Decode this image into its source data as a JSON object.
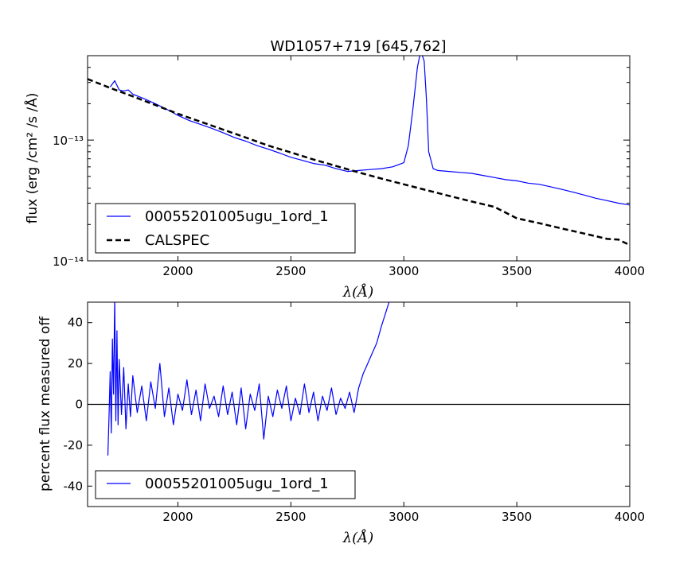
{
  "chart_data": [
    {
      "type": "line",
      "title": "WD1057+719 [645,762]",
      "xlabel": "λ(Å)",
      "ylabel": "flux (erg /cm² /s /Å)",
      "xlim": [
        1600,
        4000
      ],
      "ylim": [
        1e-14,
        5e-13
      ],
      "yscale": "log",
      "xticks": [
        2000,
        2500,
        3000,
        3500,
        4000
      ],
      "yticks": [
        {
          "value": 1e-13,
          "label": "10⁻¹³"
        },
        {
          "value": 1e-14,
          "label": "10⁻¹⁴"
        }
      ],
      "legend_position": "lower-left",
      "series": [
        {
          "name": "00055201005ugu_1ord_1",
          "color": "#0000ff",
          "style": "solid",
          "x": [
            1700,
            1720,
            1740,
            1760,
            1780,
            1800,
            1850,
            1900,
            1950,
            2000,
            2050,
            2100,
            2150,
            2200,
            2250,
            2300,
            2350,
            2400,
            2450,
            2500,
            2550,
            2600,
            2650,
            2700,
            2750,
            2800,
            2850,
            2900,
            2950,
            3000,
            3020,
            3040,
            3060,
            3075,
            3090,
            3100,
            3110,
            3130,
            3150,
            3200,
            3250,
            3300,
            3350,
            3400,
            3450,
            3500,
            3550,
            3600,
            3650,
            3700,
            3750,
            3800,
            3850,
            3900,
            3950,
            4000
          ],
          "y": [
            2.75e-13,
            3.1e-13,
            2.6e-13,
            2.55e-13,
            2.6e-13,
            2.4e-13,
            2.2e-13,
            2e-13,
            1.8e-13,
            1.6e-13,
            1.45e-13,
            1.35e-13,
            1.25e-13,
            1.15e-13,
            1.05e-13,
            9.8e-14,
            9e-14,
            8.4e-14,
            7.8e-14,
            7.2e-14,
            6.8e-14,
            6.4e-14,
            6.2e-14,
            5.8e-14,
            5.5e-14,
            5.6e-14,
            5.7e-14,
            5.8e-14,
            6e-14,
            6.5e-14,
            9e-14,
            1.8e-13,
            4e-13,
            5.5e-13,
            4.5e-13,
            2.2e-13,
            8e-14,
            5.8e-14,
            5.6e-14,
            5.5e-14,
            5.4e-14,
            5.3e-14,
            5.1e-14,
            4.9e-14,
            4.7e-14,
            4.6e-14,
            4.4e-14,
            4.3e-14,
            4.1e-14,
            3.9e-14,
            3.7e-14,
            3.5e-14,
            3.3e-14,
            3.15e-14,
            3e-14,
            2.9e-14
          ]
        },
        {
          "name": "CALSPEC",
          "color": "#000000",
          "style": "dashed",
          "x": [
            1600,
            1700,
            1800,
            1900,
            2000,
            2100,
            2200,
            2300,
            2400,
            2500,
            2600,
            2700,
            2800,
            2900,
            3000,
            3100,
            3200,
            3300,
            3400,
            3500,
            3600,
            3700,
            3800,
            3900,
            3950,
            4000
          ],
          "y": [
            3.2e-13,
            2.7e-13,
            2.3e-13,
            1.95e-13,
            1.65e-13,
            1.42e-13,
            1.22e-13,
            1.05e-13,
            9e-14,
            7.9e-14,
            6.9e-14,
            6.1e-14,
            5.4e-14,
            4.8e-14,
            4.3e-14,
            3.85e-14,
            3.45e-14,
            3.1e-14,
            2.8e-14,
            2.25e-14,
            2.05e-14,
            1.85e-14,
            1.68e-14,
            1.52e-14,
            1.5e-14,
            1.35e-14
          ]
        }
      ]
    },
    {
      "type": "line",
      "title": "",
      "xlabel": "λ(Å)",
      "ylabel": "percent flux measured off",
      "xlim": [
        1600,
        4000
      ],
      "ylim": [
        -50,
        50
      ],
      "yscale": "linear",
      "xticks": [
        2000,
        2500,
        3000,
        3500,
        4000
      ],
      "yticks": [
        -40,
        -20,
        0,
        20,
        40
      ],
      "zero_line": true,
      "legend_position": "lower-left",
      "series": [
        {
          "name": "00055201005ugu_1ord_1",
          "color": "#0000ff",
          "style": "solid",
          "x": [
            1690,
            1695,
            1700,
            1705,
            1710,
            1715,
            1720,
            1725,
            1730,
            1735,
            1740,
            1750,
            1760,
            1770,
            1780,
            1790,
            1800,
            1820,
            1840,
            1860,
            1880,
            1900,
            1920,
            1940,
            1960,
            1980,
            2000,
            2020,
            2040,
            2060,
            2080,
            2100,
            2120,
            2140,
            2160,
            2180,
            2200,
            2220,
            2240,
            2260,
            2280,
            2300,
            2320,
            2340,
            2360,
            2380,
            2400,
            2420,
            2440,
            2460,
            2480,
            2500,
            2520,
            2540,
            2560,
            2580,
            2600,
            2620,
            2640,
            2660,
            2680,
            2700,
            2720,
            2740,
            2760,
            2780,
            2800,
            2820,
            2840,
            2860,
            2880,
            2900,
            2920,
            2940
          ],
          "y": [
            -25,
            -5,
            16,
            -14,
            32,
            5,
            52,
            -8,
            36,
            -10,
            22,
            -5,
            18,
            -12,
            10,
            -6,
            14,
            -4,
            9,
            -8,
            11,
            -2,
            20,
            -6,
            8,
            -10,
            5,
            -3,
            12,
            -5,
            7,
            -8,
            10,
            -2,
            4,
            -6,
            9,
            -5,
            6,
            -10,
            8,
            -12,
            5,
            -3,
            10,
            -17,
            4,
            -6,
            7,
            -2,
            9,
            -8,
            3,
            -5,
            10,
            -4,
            6,
            -8,
            4,
            -3,
            8,
            -5,
            3,
            -2,
            6,
            -4,
            8,
            15,
            20,
            25,
            30,
            38,
            45,
            52
          ]
        }
      ]
    }
  ]
}
